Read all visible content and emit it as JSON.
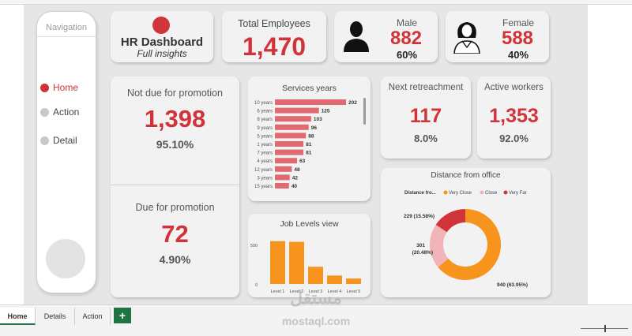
{
  "navigation": {
    "title": "Navigation",
    "items": [
      {
        "label": "Home",
        "active": true
      },
      {
        "label": "Action",
        "active": false
      },
      {
        "label": "Detail",
        "active": false
      }
    ]
  },
  "header": {
    "title": "HR Dashboard",
    "subtitle": "Full insights"
  },
  "total_employees": {
    "label": "Total Employees",
    "value": "1,470"
  },
  "male": {
    "label": "Male",
    "value": "882",
    "pct": "60%",
    "icon": "male-person-icon"
  },
  "female": {
    "label": "Female",
    "value": "588",
    "pct": "40%",
    "icon": "female-person-icon"
  },
  "promotion": {
    "not_due": {
      "label": "Not due for promotion",
      "value": "1,398",
      "pct": "95.10%"
    },
    "due": {
      "label": "Due for promotion",
      "value": "72",
      "pct": "4.90%"
    }
  },
  "retrenchment": {
    "label": "Next retreachment",
    "value": "117",
    "pct": "8.0%"
  },
  "active_workers": {
    "label": "Active workers",
    "value": "1,353",
    "pct": "92.0%"
  },
  "colors": {
    "accent": "#d13438",
    "bar_red": "#e06a70",
    "orange": "#f7941d",
    "pink": "#f2b4b8",
    "excel_green": "#217346"
  },
  "chart_data": [
    {
      "type": "bar",
      "orientation": "horizontal",
      "title": "Services years",
      "categories": [
        "10 years",
        "6 years",
        "8 years",
        "9 years",
        "5 years",
        "1 years",
        "7 years",
        "4 years",
        "12 years",
        "3 years",
        "15 years"
      ],
      "values": [
        202,
        125,
        103,
        96,
        88,
        81,
        81,
        63,
        48,
        42,
        40
      ],
      "data_labels": [
        "202",
        "125",
        "103",
        "96",
        "88",
        "81",
        "81",
        "63",
        "48",
        "42",
        "40"
      ],
      "scrollbar": true
    },
    {
      "type": "bar",
      "title": "Job Levels view",
      "categories": [
        "Level 1",
        "Level 2",
        "Level 3",
        "Level 4",
        "Level 5"
      ],
      "values": [
        543,
        534,
        218,
        106,
        69
      ],
      "yticks": [
        "500",
        "0"
      ],
      "ylim": [
        0,
        600
      ]
    },
    {
      "type": "pie",
      "donut": true,
      "title": "Distance from office",
      "legend_title": "Distance fro...",
      "legend_position": "top",
      "series": [
        {
          "name": "Very Close",
          "value": 940,
          "label": "940 (63.95%)",
          "color": "#f7941d"
        },
        {
          "name": "Close",
          "value": 301,
          "label": "301 (20.48%)",
          "color": "#f2b4b8"
        },
        {
          "name": "Very Far",
          "value": 229,
          "label": "229 (15.58%)",
          "color": "#d13438"
        }
      ]
    }
  ],
  "sheet_tabs": {
    "items": [
      "Home",
      "Details",
      "Action"
    ],
    "active": "Home",
    "add_label": "+"
  },
  "watermark": {
    "arabic": "مستقل",
    "latin": "mostaql.com"
  }
}
